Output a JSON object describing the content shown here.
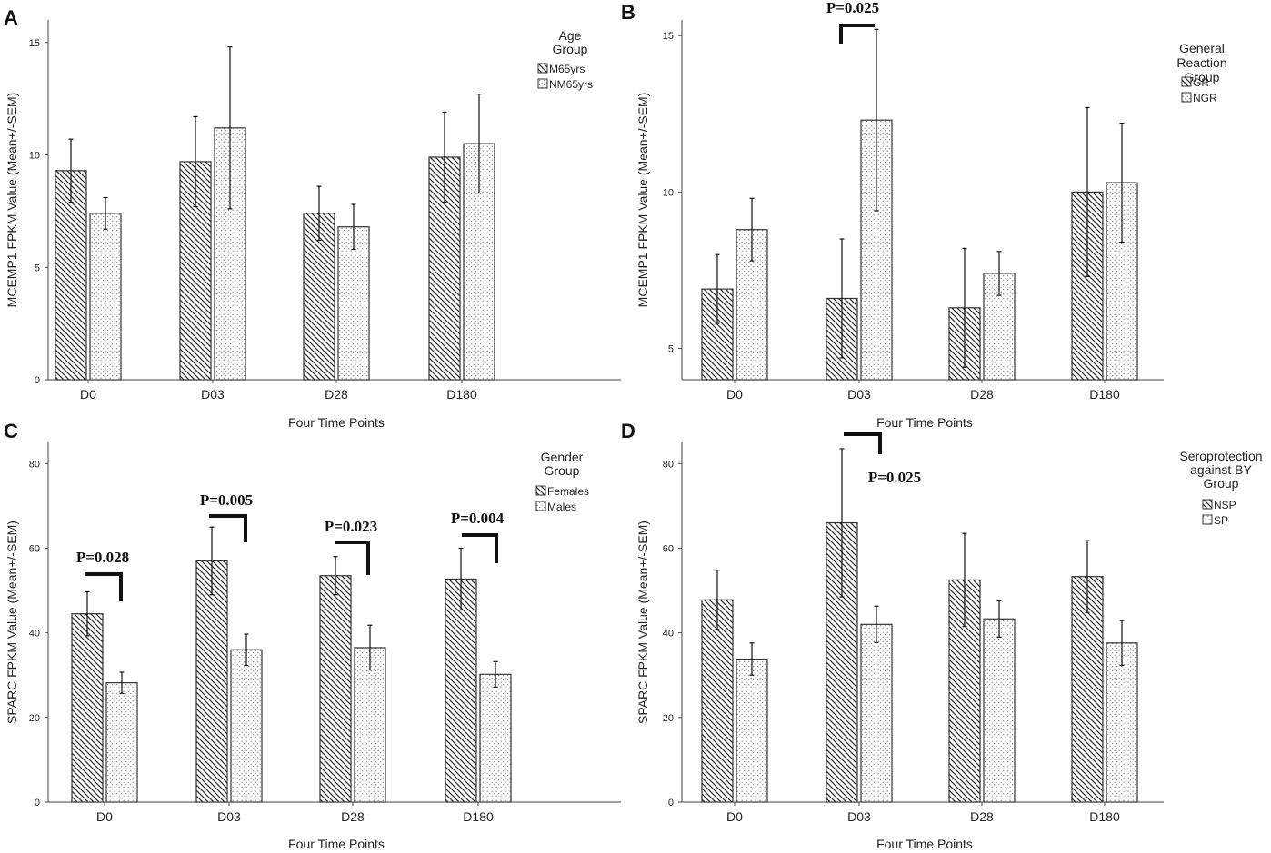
{
  "chart_data": [
    {
      "panel": "A",
      "type": "bar",
      "title": "",
      "xlabel": "Four Time Points",
      "ylabel": "MCEMP1 FPKM Value (Mean+/-SEM)",
      "categories": [
        "D0",
        "D03",
        "D28",
        "D180"
      ],
      "ylim": [
        0,
        16
      ],
      "yticks": [
        0,
        5,
        10,
        15
      ],
      "legend_title": [
        "Age",
        "Group"
      ],
      "series": [
        {
          "name": "M65yrs",
          "pattern": "hatch",
          "values": [
            9.3,
            9.7,
            7.4,
            9.9
          ],
          "err": [
            1.4,
            2.0,
            1.2,
            2.0
          ]
        },
        {
          "name": "NM65yrs",
          "pattern": "dots",
          "values": [
            7.4,
            11.2,
            6.8,
            10.5
          ],
          "err": [
            0.7,
            3.6,
            1.0,
            2.2
          ]
        }
      ],
      "annotations": []
    },
    {
      "panel": "B",
      "type": "bar",
      "title": "",
      "xlabel": "Four Time Points",
      "ylabel": "MCEMP1 FPKM Value (Mean+/-SEM)",
      "categories": [
        "D0",
        "D03",
        "D28",
        "D180"
      ],
      "ylim": [
        4,
        15.5
      ],
      "yticks": [
        5,
        10,
        15
      ],
      "legend_title": [
        "General",
        "Reaction",
        "Group"
      ],
      "series": [
        {
          "name": "GR",
          "pattern": "hatch",
          "values": [
            6.9,
            6.6,
            6.3,
            10.0
          ],
          "err": [
            1.1,
            1.9,
            1.9,
            2.7
          ]
        },
        {
          "name": "NGR",
          "pattern": "dots",
          "values": [
            8.8,
            12.3,
            7.4,
            10.3
          ],
          "err": [
            1.0,
            2.9,
            0.7,
            1.9
          ]
        }
      ],
      "annotations": [
        {
          "label": "P=0.025",
          "category": "D03",
          "side": "above"
        }
      ]
    },
    {
      "panel": "C",
      "type": "bar",
      "title": "",
      "xlabel": "Four Time Points",
      "ylabel": "SPARC FPKM Value (Mean+/-SEM)",
      "categories": [
        "D0",
        "D03",
        "D28",
        "D180"
      ],
      "ylim": [
        0,
        85
      ],
      "yticks": [
        0,
        20,
        40,
        60,
        80
      ],
      "legend_title": [
        "Gender",
        "Group"
      ],
      "series": [
        {
          "name": "Females",
          "pattern": "hatch",
          "values": [
            44.5,
            57.0,
            53.5,
            52.7
          ],
          "err": [
            5.2,
            8.0,
            4.5,
            7.3
          ]
        },
        {
          "name": "Males",
          "pattern": "dots",
          "values": [
            28.2,
            36.0,
            36.5,
            30.2
          ],
          "err": [
            2.5,
            3.7,
            5.3,
            3.0
          ]
        }
      ],
      "annotations": [
        {
          "label": "P=0.028",
          "category": "D0",
          "side": "above"
        },
        {
          "label": "P=0.005",
          "category": "D03",
          "side": "above"
        },
        {
          "label": "P=0.023",
          "category": "D28",
          "side": "above"
        },
        {
          "label": "P=0.004",
          "category": "D180",
          "side": "above"
        }
      ]
    },
    {
      "panel": "D",
      "type": "bar",
      "title": "",
      "xlabel": "Four Time Points",
      "ylabel": "SPARC FPKM Value (Mean+/-SEM)",
      "categories": [
        "D0",
        "D03",
        "D28",
        "D180"
      ],
      "ylim": [
        0,
        85
      ],
      "yticks": [
        0,
        20,
        40,
        60,
        80
      ],
      "legend_title": [
        "Seroprotection",
        "against BY",
        "Group"
      ],
      "series": [
        {
          "name": "NSP",
          "pattern": "hatch",
          "values": [
            47.8,
            66.0,
            52.5,
            53.3
          ],
          "err": [
            7.0,
            17.5,
            11.0,
            8.5
          ]
        },
        {
          "name": "SP",
          "pattern": "dots",
          "values": [
            33.8,
            42.0,
            43.3,
            37.6
          ],
          "err": [
            3.8,
            4.3,
            4.3,
            5.3
          ]
        }
      ],
      "annotations": [
        {
          "label": "P=0.025",
          "category": "D03",
          "side": "below"
        }
      ]
    }
  ]
}
